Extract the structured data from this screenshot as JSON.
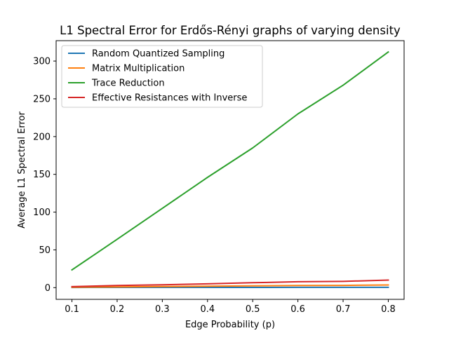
{
  "chart_data": {
    "type": "line",
    "title": "L1 Spectral Error for Erdős-Rényi graphs of varying density",
    "xlabel": "Edge Probability (p)",
    "ylabel": "Average L1 Spectral Error",
    "x": [
      0.1,
      0.2,
      0.3,
      0.4,
      0.5,
      0.6,
      0.7,
      0.8
    ],
    "xticks": [
      "0.1",
      "0.2",
      "0.3",
      "0.4",
      "0.5",
      "0.6",
      "0.7",
      "0.8"
    ],
    "yticks": [
      "0",
      "50",
      "100",
      "150",
      "200",
      "250",
      "300"
    ],
    "xlim": [
      0.065,
      0.835
    ],
    "ylim": [
      -15.5,
      327
    ],
    "grid": false,
    "legend_position": "upper-left",
    "series": [
      {
        "name": "Random Quantized Sampling",
        "color": "#1f77b4",
        "values": [
          0.2,
          0.3,
          0.3,
          0.3,
          0.3,
          0.4,
          0.4,
          0.4
        ]
      },
      {
        "name": "Matrix Multiplication",
        "color": "#ff7f0e",
        "values": [
          0.5,
          1.0,
          1.4,
          1.9,
          2.4,
          2.8,
          3.0,
          3.5
        ]
      },
      {
        "name": "Trace Reduction",
        "color": "#2ca02c",
        "values": [
          23.5,
          64,
          105,
          146,
          185,
          230,
          268,
          312
        ]
      },
      {
        "name": "Effective Resistances with Inverse",
        "color": "#d62728",
        "values": [
          1.3,
          2.8,
          3.8,
          5.0,
          6.5,
          7.8,
          8.3,
          10.0
        ]
      }
    ]
  }
}
